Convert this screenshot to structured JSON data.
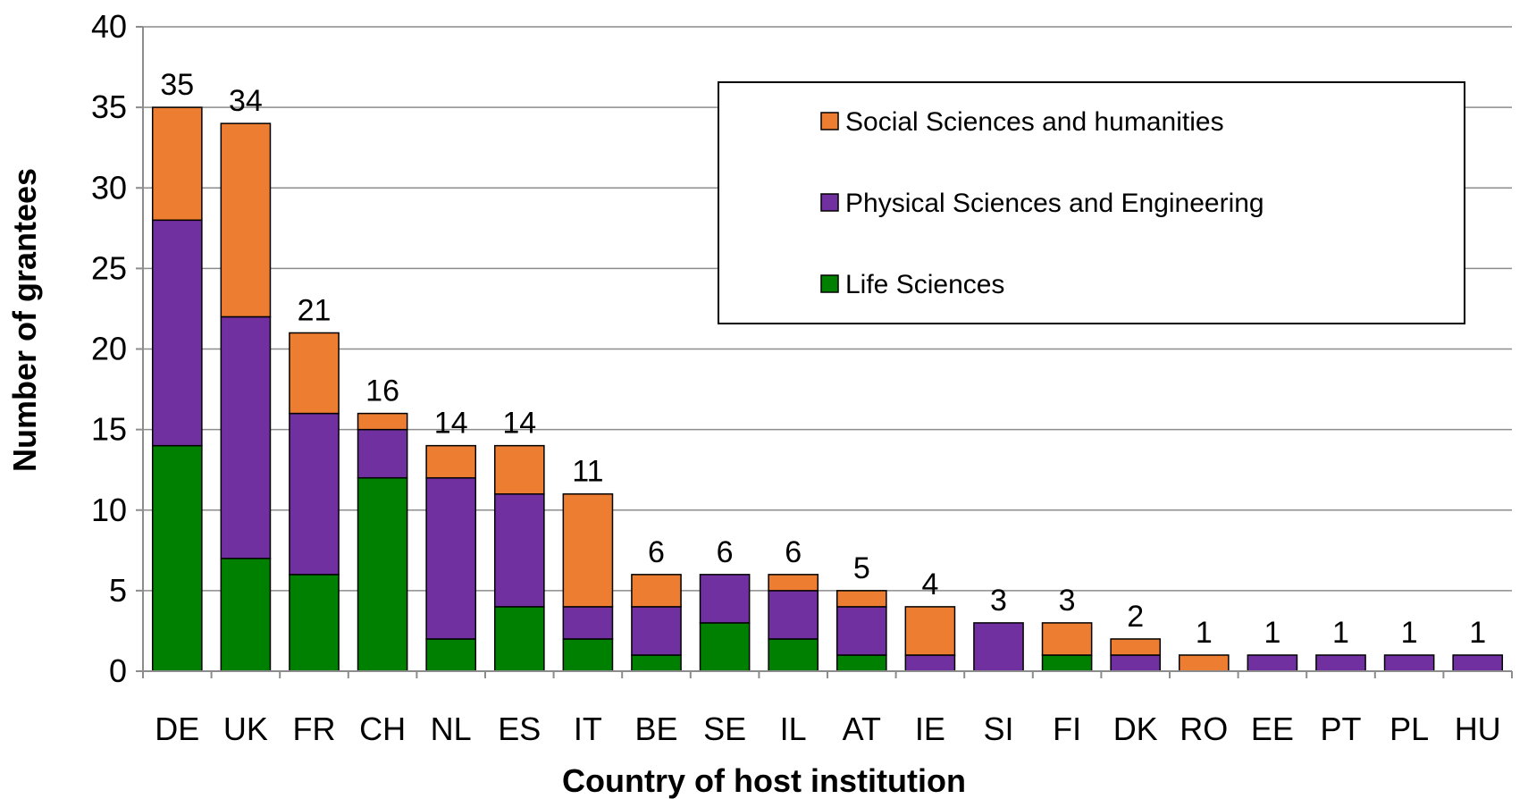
{
  "chart_data": {
    "type": "bar",
    "stacked": true,
    "categories": [
      "DE",
      "UK",
      "FR",
      "CH",
      "NL",
      "ES",
      "IT",
      "BE",
      "SE",
      "IL",
      "AT",
      "IE",
      "SI",
      "FI",
      "DK",
      "RO",
      "EE",
      "PT",
      "PL",
      "HU"
    ],
    "series": [
      {
        "name": "Life Sciences",
        "color": "#008000",
        "values": [
          14,
          7,
          6,
          12,
          2,
          4,
          2,
          1,
          3,
          2,
          1,
          0,
          0,
          1,
          0,
          0,
          0,
          0,
          0,
          0
        ]
      },
      {
        "name": "Physical Sciences and Engineering",
        "color": "#7030A0",
        "values": [
          14,
          15,
          10,
          3,
          10,
          7,
          2,
          3,
          3,
          3,
          3,
          1,
          3,
          0,
          1,
          0,
          1,
          1,
          1,
          1
        ]
      },
      {
        "name": "Social Sciences and humanities",
        "color": "#ED7D31",
        "values": [
          7,
          12,
          5,
          1,
          2,
          3,
          7,
          2,
          0,
          1,
          1,
          3,
          0,
          2,
          1,
          1,
          0,
          0,
          0,
          0
        ]
      }
    ],
    "totals": [
      35,
      34,
      21,
      16,
      14,
      14,
      11,
      6,
      6,
      6,
      5,
      4,
      3,
      3,
      2,
      1,
      1,
      1,
      1,
      1
    ],
    "title": "",
    "xlabel": "Country of host institution",
    "ylabel": "Number of grantees",
    "ylim": [
      0,
      40
    ],
    "yticks": [
      0,
      5,
      10,
      15,
      20,
      25,
      30,
      35,
      40
    ],
    "grid": true,
    "legend_position": "top-right",
    "legend_order": [
      "Social Sciences and humanities",
      "Physical Sciences and Engineering",
      "Life Sciences"
    ]
  }
}
